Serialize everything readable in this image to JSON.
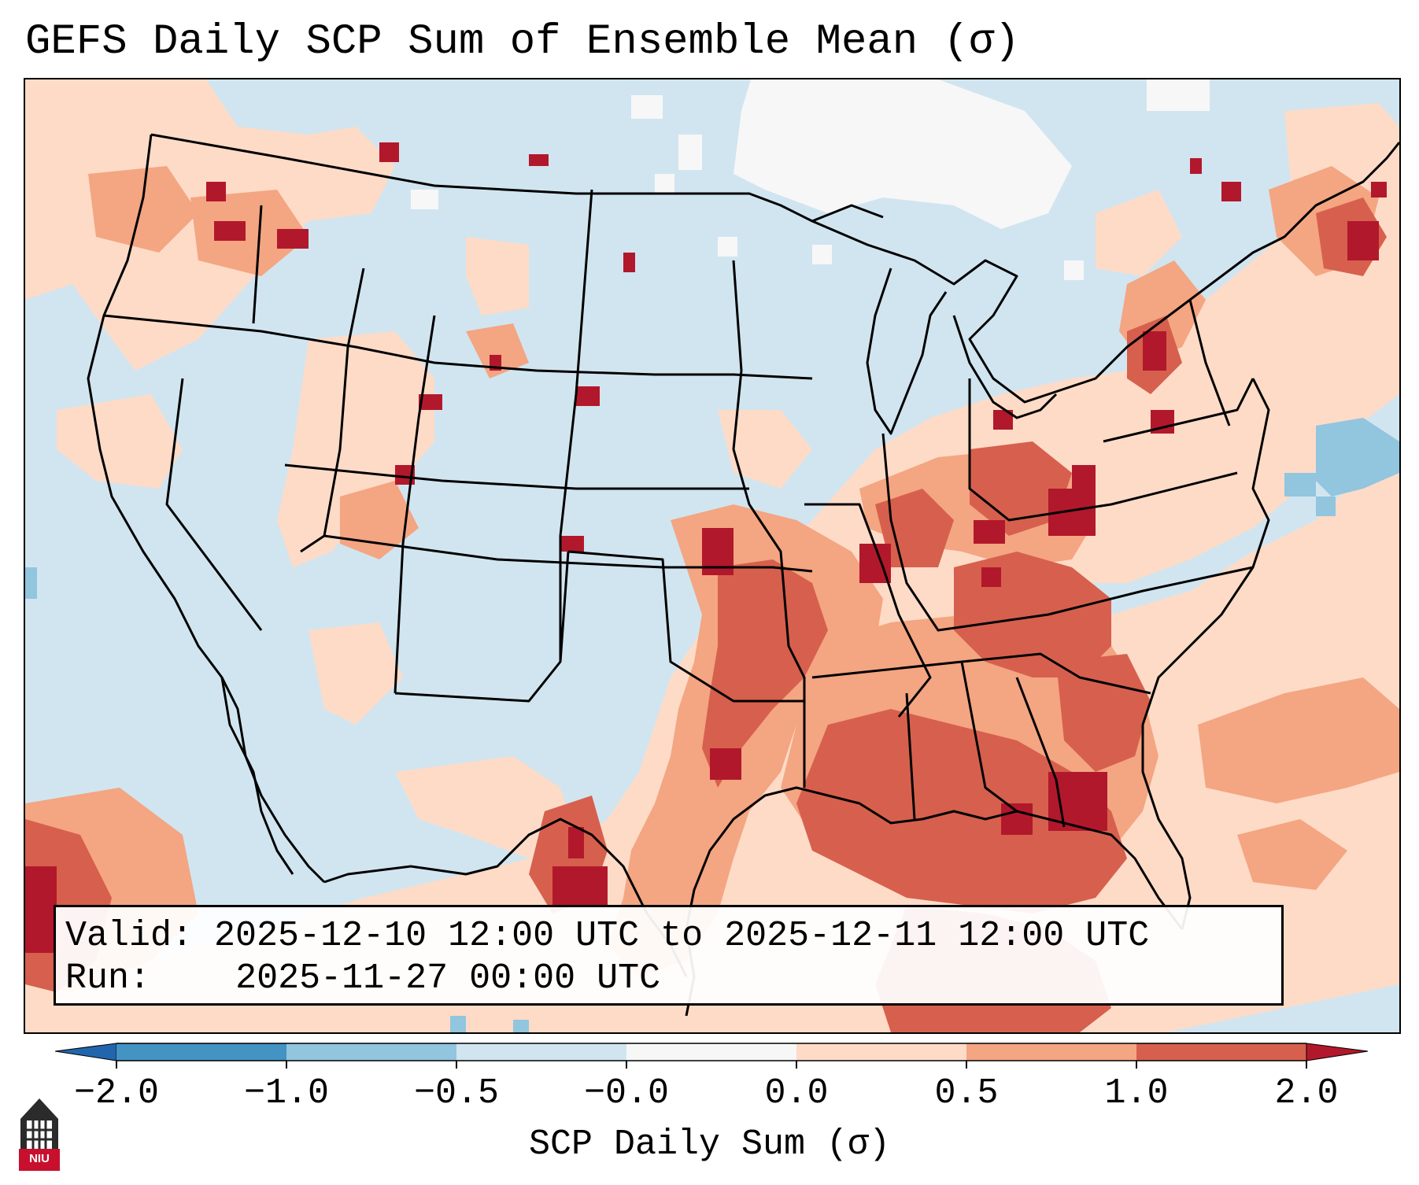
{
  "title": "GEFS Daily SCP Sum of Ensemble Mean (σ)",
  "valid_box": {
    "valid_label": "Valid:",
    "valid_value": "2025-12-10 12:00 UTC to 2025-12-11 12:00 UTC",
    "run_label": "Run:",
    "run_value": "2025-11-27 00:00 UTC"
  },
  "colorbar": {
    "label": "SCP Daily Sum (σ)",
    "ticks": [
      "−2.0",
      "−1.0",
      "−0.5",
      "−0.0",
      "0.0",
      "0.5",
      "1.0",
      "2.0"
    ],
    "bins": [
      {
        "range": "< -2.0",
        "color": "#2166ac"
      },
      {
        "range": "-2.0 to -1.0",
        "color": "#4393c3"
      },
      {
        "range": "-1.0 to -0.5",
        "color": "#92c5de"
      },
      {
        "range": "-0.5 to -0.0",
        "color": "#d1e5f0"
      },
      {
        "range": "-0.0 to 0.0",
        "color": "#f7f7f7"
      },
      {
        "range": "0.0 to 0.5",
        "color": "#fddbc7"
      },
      {
        "range": "0.5 to 1.0",
        "color": "#f4a582"
      },
      {
        "range": "1.0 to 2.0",
        "color": "#d6604d"
      },
      {
        "range": "> 2.0",
        "color": "#b2182b"
      }
    ]
  },
  "logo": {
    "text": "NIU",
    "icon": "niu-building-icon"
  },
  "map": {
    "region": "Continental United States",
    "projection": "Lambert Conformal"
  }
}
